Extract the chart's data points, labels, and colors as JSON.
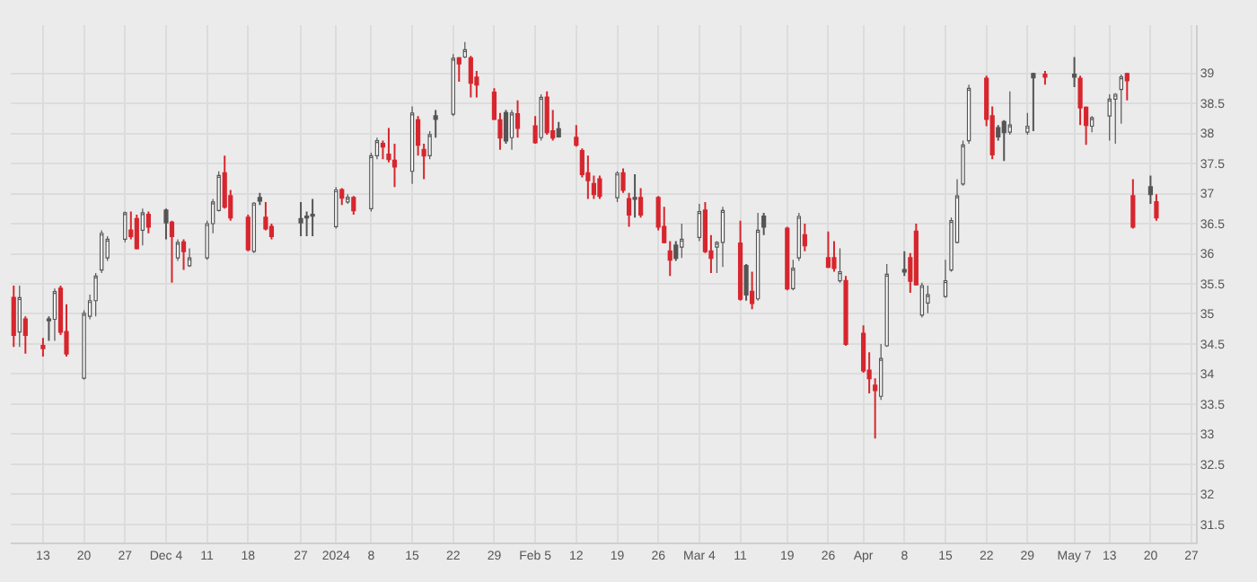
{
  "chart_data": {
    "type": "candlestick",
    "x": [
      "2023-11-08",
      "2023-11-09",
      "2023-11-10",
      "2023-11-13",
      "2023-11-14",
      "2023-11-15",
      "2023-11-16",
      "2023-11-17",
      "2023-11-20",
      "2023-11-21",
      "2023-11-22",
      "2023-11-23",
      "2023-11-24",
      "2023-11-27",
      "2023-11-28",
      "2023-11-29",
      "2023-11-30",
      "2023-12-01",
      "2023-12-04",
      "2023-12-05",
      "2023-12-06",
      "2023-12-07",
      "2023-12-08",
      "2023-12-11",
      "2023-12-12",
      "2023-12-13",
      "2023-12-14",
      "2023-12-15",
      "2023-12-18",
      "2023-12-19",
      "2023-12-20",
      "2023-12-21",
      "2023-12-22",
      "2023-12-27",
      "2023-12-28",
      "2023-12-29",
      "2024-01-02",
      "2024-01-03",
      "2024-01-04",
      "2024-01-05",
      "2024-01-08",
      "2024-01-09",
      "2024-01-10",
      "2024-01-11",
      "2024-01-12",
      "2024-01-15",
      "2024-01-16",
      "2024-01-17",
      "2024-01-18",
      "2024-01-19",
      "2024-01-22",
      "2024-01-23",
      "2024-01-24",
      "2024-01-25",
      "2024-01-26",
      "2024-01-29",
      "2024-01-30",
      "2024-01-31",
      "2024-02-01",
      "2024-02-02",
      "2024-02-05",
      "2024-02-06",
      "2024-02-07",
      "2024-02-08",
      "2024-02-09",
      "2024-02-12",
      "2024-02-13",
      "2024-02-14",
      "2024-02-15",
      "2024-02-16",
      "2024-02-19",
      "2024-02-20",
      "2024-02-21",
      "2024-02-22",
      "2024-02-23",
      "2024-02-26",
      "2024-02-27",
      "2024-02-28",
      "2024-02-29",
      "2024-03-01",
      "2024-03-04",
      "2024-03-05",
      "2024-03-06",
      "2024-03-07",
      "2024-03-08",
      "2024-03-11",
      "2024-03-12",
      "2024-03-13",
      "2024-03-14",
      "2024-03-15",
      "2024-03-19",
      "2024-03-20",
      "2024-03-21",
      "2024-03-22",
      "2024-03-26",
      "2024-03-27",
      "2024-03-28",
      "2024-03-29",
      "2024-04-01",
      "2024-04-02",
      "2024-04-03",
      "2024-04-04",
      "2024-04-05",
      "2024-04-08",
      "2024-04-09",
      "2024-04-10",
      "2024-04-11",
      "2024-04-12",
      "2024-04-15",
      "2024-04-16",
      "2024-04-17",
      "2024-04-18",
      "2024-04-19",
      "2024-04-22",
      "2024-04-23",
      "2024-04-24",
      "2024-04-25",
      "2024-04-26",
      "2024-04-29",
      "2024-04-30",
      "2024-05-02",
      "2024-05-07",
      "2024-05-08",
      "2024-05-09",
      "2024-05-10",
      "2024-05-13",
      "2024-05-14",
      "2024-05-15",
      "2024-05-16",
      "2024-05-17",
      "2024-05-20",
      "2024-05-21"
    ],
    "ohlc": [
      [
        35.27,
        35.47,
        34.45,
        34.65
      ],
      [
        34.7,
        35.47,
        34.45,
        35.27
      ],
      [
        34.91,
        34.96,
        34.34,
        34.65
      ],
      [
        34.47,
        34.6,
        34.29,
        34.43
      ],
      [
        34.89,
        34.96,
        34.55,
        34.91
      ],
      [
        34.91,
        35.42,
        34.55,
        35.37
      ],
      [
        35.42,
        35.47,
        34.65,
        34.7
      ],
      [
        34.7,
        35.16,
        34.29,
        34.34
      ],
      [
        33.93,
        35.06,
        33.91,
        35.01
      ],
      [
        34.96,
        35.32,
        34.91,
        35.22
      ],
      [
        35.22,
        35.68,
        34.96,
        35.63
      ],
      [
        35.73,
        36.39,
        35.68,
        36.34
      ],
      [
        35.93,
        36.29,
        35.88,
        36.24
      ],
      [
        36.24,
        36.7,
        36.19,
        36.68
      ],
      [
        36.39,
        36.7,
        36.24,
        36.29
      ],
      [
        36.58,
        36.65,
        36.07,
        36.09
      ],
      [
        36.39,
        36.75,
        36.14,
        36.68
      ],
      [
        36.65,
        36.7,
        36.34,
        36.45
      ],
      [
        36.52,
        36.75,
        36.24,
        36.72
      ],
      [
        36.52,
        36.55,
        35.52,
        36.29
      ],
      [
        35.93,
        36.24,
        35.88,
        36.19
      ],
      [
        36.19,
        36.24,
        35.73,
        36.04
      ],
      [
        35.8,
        36.09,
        35.78,
        35.93
      ],
      [
        35.93,
        36.55,
        35.9,
        36.5
      ],
      [
        36.5,
        36.91,
        36.34,
        36.86
      ],
      [
        36.72,
        37.37,
        36.7,
        37.3
      ],
      [
        37.34,
        37.63,
        36.75,
        36.78
      ],
      [
        36.96,
        37.06,
        36.55,
        36.6
      ],
      [
        36.6,
        36.65,
        36.04,
        36.07
      ],
      [
        36.04,
        36.86,
        36.01,
        36.84
      ],
      [
        36.88,
        37.01,
        36.81,
        36.93
      ],
      [
        36.6,
        36.86,
        36.39,
        36.42
      ],
      [
        36.45,
        36.5,
        36.24,
        36.29
      ],
      [
        36.52,
        36.86,
        36.29,
        36.58
      ],
      [
        36.6,
        36.7,
        36.29,
        36.62
      ],
      [
        36.63,
        36.91,
        36.29,
        36.65
      ],
      [
        36.45,
        37.11,
        36.42,
        37.06
      ],
      [
        37.06,
        37.09,
        36.81,
        36.93
      ],
      [
        36.86,
        36.99,
        36.83,
        36.94
      ],
      [
        36.93,
        36.96,
        36.65,
        36.72
      ],
      [
        36.75,
        37.68,
        36.7,
        37.63
      ],
      [
        37.63,
        37.93,
        37.57,
        37.88
      ],
      [
        37.83,
        37.88,
        37.57,
        37.78
      ],
      [
        37.65,
        38.09,
        37.52,
        37.57
      ],
      [
        37.55,
        37.83,
        37.11,
        37.45
      ],
      [
        37.37,
        38.45,
        37.16,
        38.34
      ],
      [
        38.22,
        38.29,
        37.63,
        37.81
      ],
      [
        37.73,
        37.83,
        37.24,
        37.63
      ],
      [
        37.63,
        38.04,
        37.57,
        37.98
      ],
      [
        38.24,
        38.39,
        37.93,
        38.29
      ],
      [
        38.32,
        39.32,
        38.29,
        39.25
      ],
      [
        39.25,
        39.27,
        38.86,
        39.16
      ],
      [
        39.27,
        39.52,
        39.25,
        39.39
      ],
      [
        39.25,
        39.29,
        38.6,
        38.84
      ],
      [
        38.93,
        39.04,
        38.6,
        38.81
      ],
      [
        38.68,
        38.75,
        38.22,
        38.24
      ],
      [
        38.22,
        38.34,
        37.73,
        37.93
      ],
      [
        37.88,
        38.39,
        37.83,
        38.34
      ],
      [
        37.93,
        38.39,
        37.73,
        38.34
      ],
      [
        38.32,
        38.55,
        37.93,
        38.09
      ],
      [
        38.12,
        38.29,
        37.83,
        37.85
      ],
      [
        37.93,
        38.65,
        37.88,
        38.6
      ],
      [
        38.6,
        38.7,
        37.98,
        38.02
      ],
      [
        38.04,
        38.39,
        37.88,
        37.93
      ],
      [
        37.95,
        38.19,
        37.93,
        38.07
      ],
      [
        37.93,
        38.14,
        37.78,
        37.81
      ],
      [
        37.71,
        37.75,
        37.27,
        37.32
      ],
      [
        37.34,
        37.63,
        36.91,
        37.22
      ],
      [
        37.16,
        37.3,
        36.91,
        36.99
      ],
      [
        37.24,
        37.3,
        36.91,
        36.96
      ],
      [
        36.93,
        37.37,
        36.86,
        37.34
      ],
      [
        37.34,
        37.42,
        37.01,
        37.06
      ],
      [
        36.91,
        37.01,
        36.45,
        36.65
      ],
      [
        36.91,
        37.32,
        36.6,
        36.93
      ],
      [
        36.93,
        37.09,
        36.6,
        36.65
      ],
      [
        36.93,
        36.96,
        36.39,
        36.45
      ],
      [
        36.45,
        36.78,
        36.17,
        36.19
      ],
      [
        36.04,
        36.21,
        35.63,
        35.9
      ],
      [
        35.93,
        36.21,
        35.88,
        36.14
      ],
      [
        36.11,
        36.5,
        35.93,
        36.24
      ],
      [
        36.27,
        36.83,
        36.21,
        36.7
      ],
      [
        36.72,
        36.86,
        36.01,
        36.04
      ],
      [
        36.04,
        36.31,
        35.68,
        35.93
      ],
      [
        36.11,
        36.21,
        35.68,
        36.19
      ],
      [
        36.19,
        36.78,
        35.78,
        36.72
      ],
      [
        36.17,
        36.55,
        35.22,
        35.25
      ],
      [
        35.32,
        35.83,
        35.22,
        35.8
      ],
      [
        35.37,
        35.7,
        35.08,
        35.18
      ],
      [
        35.25,
        36.68,
        35.22,
        36.39
      ],
      [
        36.45,
        36.68,
        36.31,
        36.62
      ],
      [
        36.42,
        36.45,
        35.39,
        35.42
      ],
      [
        35.42,
        35.9,
        35.39,
        35.76
      ],
      [
        35.93,
        36.68,
        35.88,
        36.62
      ],
      [
        36.31,
        36.5,
        36.04,
        36.14
      ],
      [
        35.93,
        36.37,
        35.76,
        35.78
      ],
      [
        35.93,
        36.21,
        35.7,
        35.76
      ],
      [
        35.55,
        36.09,
        35.52,
        35.7
      ],
      [
        35.55,
        35.63,
        34.47,
        34.5
      ],
      [
        34.67,
        34.81,
        34.02,
        34.06
      ],
      [
        34.06,
        34.36,
        33.68,
        33.93
      ],
      [
        33.81,
        33.93,
        32.93,
        33.73
      ],
      [
        33.63,
        34.5,
        33.57,
        34.26
      ],
      [
        34.47,
        35.83,
        34.45,
        35.66
      ],
      [
        35.7,
        36.04,
        35.63,
        35.73
      ],
      [
        35.93,
        36.01,
        35.35,
        35.55
      ],
      [
        36.37,
        36.5,
        35.47,
        35.49
      ],
      [
        34.98,
        35.52,
        34.94,
        35.47
      ],
      [
        35.18,
        35.47,
        35.01,
        35.32
      ],
      [
        35.29,
        35.9,
        35.27,
        35.55
      ],
      [
        35.73,
        36.6,
        35.7,
        36.55
      ],
      [
        36.19,
        37.24,
        36.17,
        36.96
      ],
      [
        37.16,
        37.88,
        37.13,
        37.81
      ],
      [
        37.88,
        38.81,
        37.83,
        38.75
      ],
      [
        38.91,
        38.96,
        38.12,
        38.24
      ],
      [
        38.29,
        38.45,
        37.57,
        37.65
      ],
      [
        37.95,
        38.14,
        37.88,
        38.09
      ],
      [
        38.02,
        38.22,
        37.54,
        38.19
      ],
      [
        38.02,
        38.7,
        37.98,
        38.14
      ],
      [
        38.02,
        38.34,
        37.98,
        38.12
      ],
      [
        38.93,
        39.01,
        38.04,
        38.99
      ],
      [
        38.98,
        39.04,
        38.81,
        38.94
      ],
      [
        38.94,
        39.27,
        38.77,
        38.98
      ],
      [
        38.91,
        38.96,
        38.14,
        38.43
      ],
      [
        38.43,
        38.45,
        37.81,
        38.14
      ],
      [
        38.12,
        38.29,
        38.02,
        38.26
      ],
      [
        38.29,
        38.65,
        37.88,
        38.57
      ],
      [
        38.57,
        38.67,
        37.83,
        38.65
      ],
      [
        38.73,
        38.98,
        38.16,
        38.94
      ],
      [
        38.99,
        39.01,
        38.55,
        38.88
      ],
      [
        36.96,
        37.24,
        36.42,
        36.45
      ],
      [
        36.99,
        37.3,
        36.83,
        37.11
      ],
      [
        36.86,
        36.99,
        36.55,
        36.6
      ]
    ],
    "colors": [
      "#d7262e",
      "#ffffff",
      "#d7262e",
      "#d7262e",
      "#555555",
      "#ffffff",
      "#d7262e",
      "#d7262e",
      "#ffffff",
      "#ffffff",
      "#ffffff",
      "#ffffff",
      "#ffffff",
      "#ffffff",
      "#d7262e",
      "#d7262e",
      "#ffffff",
      "#d7262e",
      "#555555",
      "#d7262e",
      "#ffffff",
      "#d7262e",
      "#ffffff",
      "#ffffff",
      "#ffffff",
      "#ffffff",
      "#d7262e",
      "#d7262e",
      "#d7262e",
      "#ffffff",
      "#555555",
      "#d7262e",
      "#d7262e",
      "#555555",
      "#555555",
      "#555555",
      "#ffffff",
      "#d7262e",
      "#ffffff",
      "#d7262e",
      "#ffffff",
      "#ffffff",
      "#d7262e",
      "#d7262e",
      "#d7262e",
      "#ffffff",
      "#d7262e",
      "#d7262e",
      "#ffffff",
      "#555555",
      "#ffffff",
      "#d7262e",
      "#ffffff",
      "#d7262e",
      "#d7262e",
      "#d7262e",
      "#d7262e",
      "#555555",
      "#ffffff",
      "#d7262e",
      "#d7262e",
      "#ffffff",
      "#d7262e",
      "#d7262e",
      "#555555",
      "#d7262e",
      "#d7262e",
      "#d7262e",
      "#d7262e",
      "#d7262e",
      "#ffffff",
      "#d7262e",
      "#d7262e",
      "#555555",
      "#d7262e",
      "#d7262e",
      "#d7262e",
      "#d7262e",
      "#555555",
      "#ffffff",
      "#ffffff",
      "#d7262e",
      "#d7262e",
      "#ffffff",
      "#ffffff",
      "#d7262e",
      "#555555",
      "#d7262e",
      "#ffffff",
      "#555555",
      "#d7262e",
      "#ffffff",
      "#ffffff",
      "#d7262e",
      "#d7262e",
      "#d7262e",
      "#ffffff",
      "#d7262e",
      "#d7262e",
      "#d7262e",
      "#d7262e",
      "#ffffff",
      "#ffffff",
      "#555555",
      "#d7262e",
      "#d7262e",
      "#ffffff",
      "#ffffff",
      "#ffffff",
      "#ffffff",
      "#ffffff",
      "#ffffff",
      "#ffffff",
      "#d7262e",
      "#d7262e",
      "#555555",
      "#555555",
      "#ffffff",
      "#ffffff",
      "#555555",
      "#d7262e",
      "#555555",
      "#d7262e",
      "#d7262e",
      "#ffffff",
      "#ffffff",
      "#ffffff",
      "#ffffff",
      "#d7262e",
      "#d7262e",
      "#555555",
      "#d7262e"
    ],
    "xlim": [
      "2023-11-07T12:00",
      "2024-05-27T18:00"
    ],
    "xticks": [
      {
        "value": "2023-11-13",
        "label": "13"
      },
      {
        "value": "2023-11-20",
        "label": "20"
      },
      {
        "value": "2023-11-27",
        "label": "27"
      },
      {
        "value": "2023-12-04",
        "label": "Dec 4"
      },
      {
        "value": "2023-12-11",
        "label": "11"
      },
      {
        "value": "2023-12-18",
        "label": "18"
      },
      {
        "value": "2023-12-27",
        "label": "27"
      },
      {
        "value": "2024-01-02",
        "label": "2024"
      },
      {
        "value": "2024-01-08",
        "label": "8"
      },
      {
        "value": "2024-01-15",
        "label": "15"
      },
      {
        "value": "2024-01-22",
        "label": "22"
      },
      {
        "value": "2024-01-29",
        "label": "29"
      },
      {
        "value": "2024-02-05",
        "label": "Feb 5"
      },
      {
        "value": "2024-02-12",
        "label": "12"
      },
      {
        "value": "2024-02-19",
        "label": "19"
      },
      {
        "value": "2024-02-26",
        "label": "26"
      },
      {
        "value": "2024-03-04",
        "label": "Mar 4"
      },
      {
        "value": "2024-03-11",
        "label": "11"
      },
      {
        "value": "2024-03-19",
        "label": "19"
      },
      {
        "value": "2024-03-26",
        "label": "26"
      },
      {
        "value": "2024-04-01",
        "label": "Apr"
      },
      {
        "value": "2024-04-08",
        "label": "8"
      },
      {
        "value": "2024-04-15",
        "label": "15"
      },
      {
        "value": "2024-04-22",
        "label": "22"
      },
      {
        "value": "2024-04-29",
        "label": "29"
      },
      {
        "value": "2024-05-07",
        "label": "May 7"
      },
      {
        "value": "2024-05-13",
        "label": "13"
      },
      {
        "value": "2024-05-20",
        "label": "20"
      },
      {
        "value": "2024-05-27",
        "label": "27"
      }
    ],
    "ylim": [
      31.2,
      39.8
    ],
    "yticks": [
      31.5,
      32,
      32.5,
      33,
      33.5,
      34,
      34.5,
      35,
      35.5,
      36,
      36.5,
      37,
      37.5,
      38,
      38.5,
      39
    ],
    "grid": true
  }
}
